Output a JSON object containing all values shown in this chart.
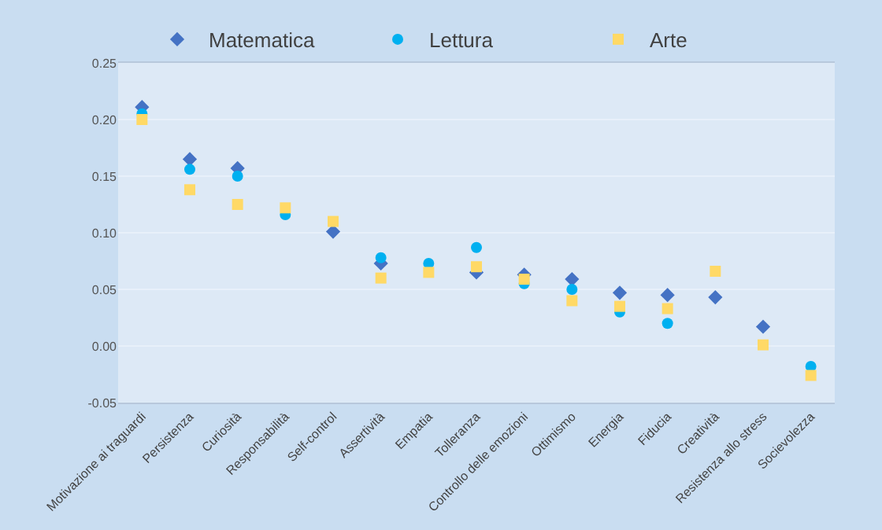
{
  "chart_data": {
    "type": "scatter",
    "categories": [
      "Motivazione ai traguardi",
      "Persistenza",
      "Curiosità",
      "Responsabilità",
      "Self-control",
      "Assertività",
      "Empatia",
      "Tolleranza",
      "Controllo delle emozioni",
      "Ottimismo",
      "Energia",
      "Fiducia",
      "Creatività",
      "Resistenza allo stress",
      "Socievolezza"
    ],
    "series": [
      {
        "name": "Matematica",
        "color": "#4472c4",
        "marker": "diamond",
        "values": [
          0.211,
          0.165,
          0.157,
          null,
          0.101,
          0.073,
          null,
          0.065,
          0.063,
          0.059,
          0.047,
          0.045,
          0.043,
          0.017,
          null
        ]
      },
      {
        "name": "Lettura",
        "color": "#00b0f0",
        "marker": "circle",
        "values": [
          0.205,
          0.156,
          0.15,
          0.116,
          null,
          0.078,
          0.073,
          0.087,
          0.055,
          0.05,
          0.03,
          0.02,
          null,
          null,
          -0.018
        ]
      },
      {
        "name": "Arte",
        "color": "#ffd966",
        "marker": "square",
        "values": [
          0.2,
          0.138,
          0.125,
          0.122,
          0.11,
          0.06,
          0.065,
          0.07,
          0.059,
          0.04,
          0.035,
          0.033,
          0.066,
          0.001,
          -0.026
        ]
      }
    ],
    "ylim": [
      -0.05,
      0.25
    ],
    "yticks": [
      {
        "value": -0.05,
        "label": "-0.05"
      },
      {
        "value": 0,
        "label": "0.00"
      },
      {
        "value": 0.05,
        "label": "0.05"
      },
      {
        "value": 0.1,
        "label": "0.10"
      },
      {
        "value": 0.15,
        "label": "0.15"
      },
      {
        "value": 0.2,
        "label": "0.20"
      },
      {
        "value": 0.25,
        "label": "0.25"
      }
    ],
    "grid": "y",
    "legend": "top"
  }
}
